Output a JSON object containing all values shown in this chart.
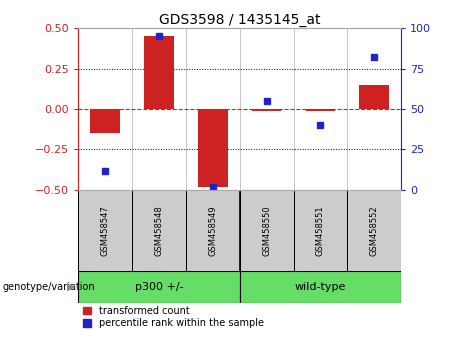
{
  "title": "GDS3598 / 1435145_at",
  "samples": [
    "GSM458547",
    "GSM458548",
    "GSM458549",
    "GSM458550",
    "GSM458551",
    "GSM458552"
  ],
  "red_values": [
    -0.15,
    0.45,
    -0.48,
    -0.01,
    -0.01,
    0.15
  ],
  "blue_values": [
    12,
    95,
    2,
    55,
    40,
    82
  ],
  "ylim_left": [
    -0.5,
    0.5
  ],
  "ylim_right": [
    0,
    100
  ],
  "yticks_left": [
    -0.5,
    -0.25,
    0,
    0.25,
    0.5
  ],
  "yticks_right": [
    0,
    25,
    50,
    75,
    100
  ],
  "hline_dotted_values": [
    0.25,
    -0.25
  ],
  "bar_color": "#cc2222",
  "dot_color": "#2222cc",
  "bar_width": 0.55,
  "genotype_label": "genotype/variation",
  "legend_red": "transformed count",
  "legend_blue": "percentile rank within the sample",
  "background_color": "#ffffff",
  "plot_bg": "#ffffff",
  "group_box_color": "#cccccc",
  "green_color": "#66dd66",
  "left_axis_color": "#cc2222",
  "right_axis_color": "#2222cc",
  "group1_label": "p300 +/-",
  "group2_label": "wild-type",
  "group1_indices": [
    0,
    1,
    2
  ],
  "group2_indices": [
    3,
    4,
    5
  ]
}
